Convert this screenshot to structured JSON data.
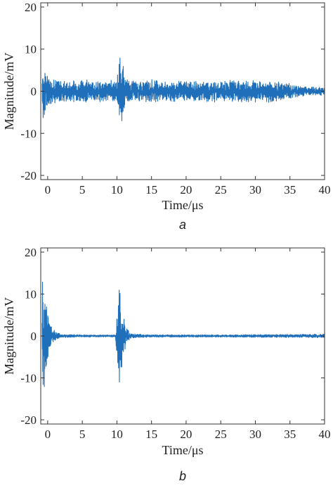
{
  "colors": {
    "signal": "#1f6fba",
    "axis": "#333333"
  },
  "chart_data": [
    {
      "type": "line",
      "panel_label": "a",
      "xlabel": "Time/μs",
      "ylabel": "Magnitude/mV",
      "xlim": [
        -1,
        40
      ],
      "ylim": [
        -21,
        21
      ],
      "xticks": [
        0,
        5,
        10,
        15,
        20,
        25,
        30,
        35,
        40
      ],
      "yticks": [
        20,
        10,
        0,
        -10,
        -20
      ],
      "grid": false,
      "series": [
        {
          "x": [
            -0.8,
            -0.6,
            -0.5,
            -0.3,
            -0.1,
            0.2,
            0.8,
            2.0,
            4.0,
            7.0,
            10.0,
            10.3,
            10.6,
            10.8,
            11.0,
            11.3,
            11.8,
            15.0,
            20.0,
            25.0,
            30.0,
            33.0,
            35.0,
            37.0,
            40.0
          ],
          "envelope": [
            2.0,
            9.0,
            7.0,
            6.0,
            4.5,
            3.5,
            3.0,
            2.8,
            2.8,
            2.8,
            2.8,
            7.0,
            11.0,
            8.0,
            5.0,
            3.0,
            2.6,
            2.8,
            2.6,
            2.6,
            2.8,
            2.6,
            2.0,
            1.2,
            1.0
          ]
        }
      ]
    },
    {
      "type": "line",
      "panel_label": "b",
      "xlabel": "Time/μs",
      "ylabel": "Magnitude/mV",
      "xlim": [
        -1,
        40
      ],
      "ylim": [
        -21,
        21
      ],
      "xticks": [
        0,
        5,
        10,
        15,
        20,
        25,
        30,
        35,
        40
      ],
      "yticks": [
        20,
        10,
        0,
        -10,
        -20
      ],
      "grid": false,
      "series": [
        {
          "x": [
            -0.8,
            -0.6,
            -0.4,
            -0.2,
            0.0,
            0.3,
            0.7,
            1.2,
            2.0,
            5.0,
            9.8,
            10.1,
            10.4,
            10.7,
            11.0,
            11.4,
            12.0,
            15.0,
            25.0,
            35.0,
            40.0
          ],
          "envelope": [
            16.0,
            15.0,
            12.0,
            9.0,
            6.0,
            3.5,
            2.0,
            1.0,
            0.4,
            0.3,
            0.3,
            8.0,
            13.5,
            9.0,
            5.0,
            2.0,
            0.6,
            0.3,
            0.3,
            0.4,
            0.5
          ]
        }
      ]
    }
  ]
}
